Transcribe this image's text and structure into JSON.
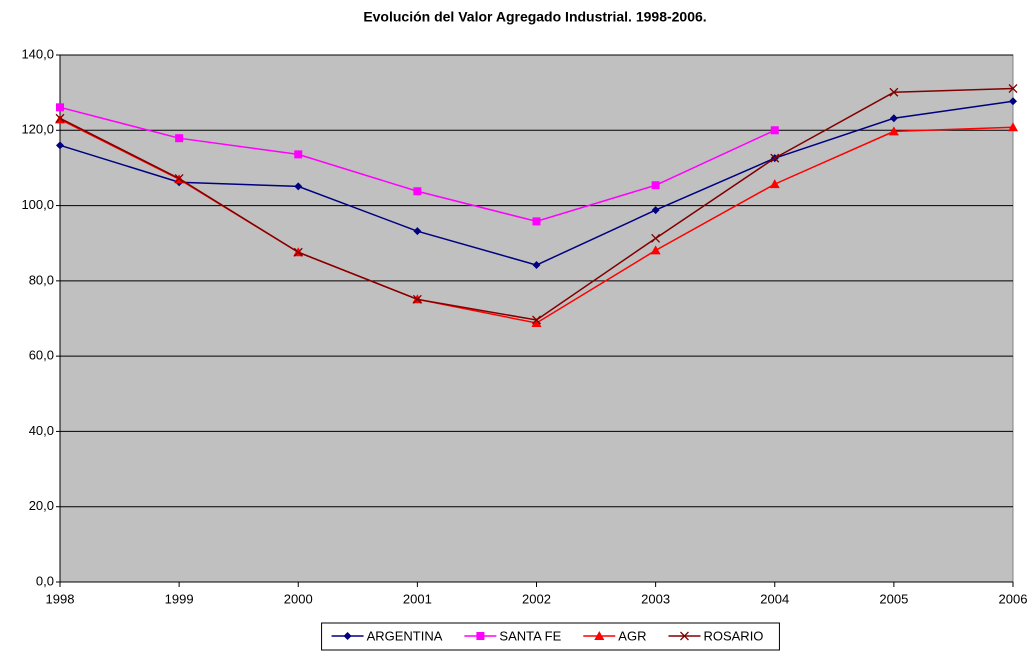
{
  "chart_data": {
    "type": "line",
    "title": "Evolución del Valor Agregado Industrial. 1998-2006.",
    "x": [
      1998,
      1999,
      2000,
      2001,
      2002,
      2003,
      2004,
      2005,
      2006
    ],
    "xlim": [
      1998,
      2006
    ],
    "xticks": [
      1998,
      1999,
      2000,
      2001,
      2002,
      2003,
      2004,
      2005,
      2006
    ],
    "ylim": [
      0,
      140
    ],
    "yticks": [
      {
        "value": 0,
        "label": "0,0"
      },
      {
        "value": 20,
        "label": "20,0"
      },
      {
        "value": 40,
        "label": "40,0"
      },
      {
        "value": 60,
        "label": "60,0"
      },
      {
        "value": 80,
        "label": "80,0"
      },
      {
        "value": 100,
        "label": "100,0"
      },
      {
        "value": 120,
        "label": "120,0"
      },
      {
        "value": 140,
        "label": "140,0"
      }
    ],
    "grid": true,
    "legend": "bottom",
    "plot_background": "#c0c0c0",
    "series": [
      {
        "name": "ARGENTINA",
        "color": "#000080",
        "marker": "diamond",
        "values": [
          116.0,
          106.2,
          105.1,
          93.2,
          84.2,
          98.8,
          112.6,
          123.2,
          127.7
        ]
      },
      {
        "name": "SANTA FE",
        "color": "#ff00ff",
        "marker": "square",
        "values": [
          126.1,
          117.9,
          113.6,
          103.8,
          95.8,
          105.4,
          120.0,
          null,
          null
        ]
      },
      {
        "name": "AGR",
        "color": "#ff0000",
        "marker": "triangle",
        "values": [
          122.9,
          107.0,
          87.6,
          75.1,
          68.8,
          88.1,
          105.7,
          119.7,
          120.8
        ]
      },
      {
        "name": "ROSARIO",
        "color": "#800000",
        "marker": "x",
        "values": [
          123.2,
          107.2,
          87.6,
          75.1,
          69.6,
          91.3,
          112.6,
          130.1,
          131.1
        ]
      }
    ]
  }
}
